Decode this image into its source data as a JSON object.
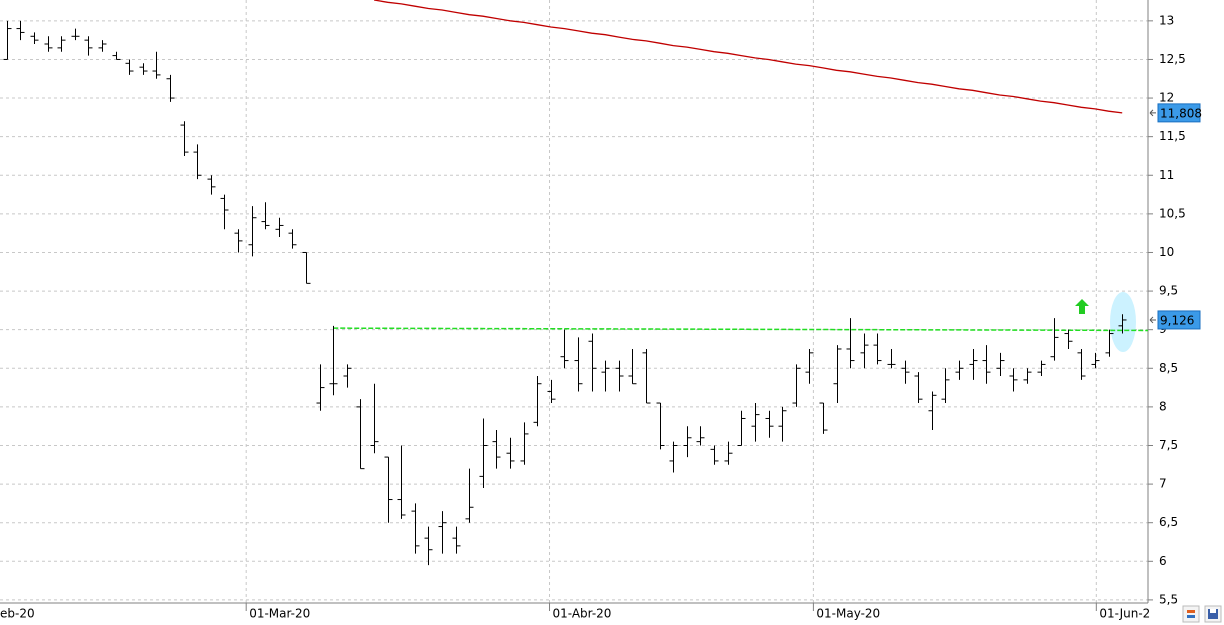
{
  "chart_data": {
    "type": "ohlc",
    "color": "#000000",
    "grid": true,
    "xlim": [
      -0.5,
      83.9
    ],
    "ylim": [
      5.46,
      13.27
    ],
    "yticks": [
      {
        "value": 5.5,
        "label": "5,5"
      },
      6,
      {
        "value": 6.5,
        "label": "6,5"
      },
      7,
      {
        "value": 7.5,
        "label": "7,5"
      },
      8,
      {
        "value": 8.5,
        "label": "8,5"
      },
      9,
      {
        "value": 9.5,
        "label": "9,5"
      },
      10,
      {
        "value": 10.5,
        "label": "10,5"
      },
      11,
      {
        "value": 11.5,
        "label": "11,5"
      },
      12,
      {
        "value": 12.5,
        "label": "12,5"
      },
      13
    ],
    "xticks": [
      {
        "value": -0.72,
        "label": "eb-20"
      },
      {
        "value": 17.6,
        "label": "01-Mar-20"
      },
      {
        "value": 39.9,
        "label": "01-Abr-20"
      },
      {
        "value": 59.3,
        "label": "01-May-20"
      },
      {
        "value": 80.1,
        "label": "01-Jun-2"
      }
    ],
    "x": [
      0,
      1,
      2,
      3,
      4,
      5,
      6,
      7,
      8,
      9,
      10,
      11,
      12,
      13,
      14,
      15,
      16,
      17,
      18,
      19,
      20,
      21,
      22,
      23,
      24,
      25,
      26,
      27,
      28,
      29,
      30,
      31,
      32,
      33,
      34,
      35,
      36,
      37,
      38,
      39,
      40,
      41,
      42,
      43,
      44,
      45,
      46,
      47,
      48,
      49,
      50,
      51,
      52,
      53,
      54,
      55,
      56,
      57,
      58,
      59,
      60,
      61,
      62,
      63,
      64,
      65,
      66,
      67,
      68,
      69,
      70,
      71,
      72,
      73,
      74,
      75,
      76,
      77,
      78,
      79,
      80,
      81,
      82
    ],
    "open": [
      12.5,
      12.9,
      12.8,
      12.7,
      12.65,
      12.8,
      12.75,
      12.65,
      12.55,
      12.45,
      12.4,
      12.35,
      12.25,
      11.65,
      11.3,
      10.95,
      10.7,
      10.25,
      10.1,
      10.4,
      10.3,
      10.25,
      10.0,
      8.05,
      8.3,
      8.4,
      8.0,
      7.5,
      7.35,
      6.8,
      6.65,
      6.3,
      6.45,
      6.3,
      6.55,
      7.1,
      7.55,
      7.4,
      7.3,
      7.8,
      8.2,
      8.65,
      8.6,
      8.85,
      8.45,
      8.5,
      8.4,
      8.7,
      8.05,
      7.3,
      7.5,
      7.55,
      7.45,
      7.3,
      7.5,
      7.75,
      7.85,
      7.75,
      8.05,
      8.45,
      8.05,
      8.3,
      8.75,
      8.7,
      8.8,
      8.55,
      8.5,
      8.4,
      7.95,
      8.1,
      8.45,
      8.55,
      8.6,
      8.5,
      8.4,
      8.35,
      8.45,
      8.65,
      8.95,
      8.7,
      8.55,
      8.7,
      9.05
    ],
    "high": [
      13.0,
      13.0,
      12.85,
      12.8,
      12.8,
      12.9,
      12.8,
      12.75,
      12.6,
      12.5,
      12.45,
      12.6,
      12.3,
      11.7,
      11.4,
      11.0,
      10.75,
      10.3,
      10.6,
      10.65,
      10.45,
      10.3,
      10.0,
      8.55,
      9.05,
      8.55,
      8.1,
      8.3,
      7.35,
      7.5,
      6.75,
      6.45,
      6.65,
      6.45,
      7.2,
      7.85,
      7.7,
      7.6,
      7.8,
      8.4,
      8.35,
      9.0,
      8.9,
      8.95,
      8.6,
      8.6,
      8.75,
      8.75,
      8.05,
      7.55,
      7.75,
      7.75,
      7.5,
      7.55,
      7.95,
      8.05,
      7.95,
      8.0,
      8.55,
      8.75,
      8.05,
      8.8,
      9.15,
      8.95,
      8.95,
      8.75,
      8.6,
      8.45,
      8.2,
      8.5,
      8.6,
      8.75,
      8.8,
      8.7,
      8.5,
      8.5,
      8.6,
      9.15,
      9.0,
      8.75,
      8.7,
      9.0,
      9.2
    ],
    "low": [
      12.5,
      12.75,
      12.7,
      12.6,
      12.6,
      12.75,
      12.55,
      12.6,
      12.5,
      12.3,
      12.3,
      12.25,
      11.95,
      11.25,
      10.95,
      10.75,
      10.3,
      10.0,
      9.95,
      10.3,
      10.2,
      10.05,
      9.6,
      7.95,
      8.15,
      8.25,
      7.2,
      7.4,
      6.5,
      6.55,
      6.1,
      5.95,
      6.1,
      6.1,
      6.5,
      6.95,
      7.2,
      7.2,
      7.25,
      7.75,
      8.05,
      8.5,
      8.2,
      8.2,
      8.2,
      8.2,
      8.3,
      8.05,
      7.45,
      7.15,
      7.35,
      7.5,
      7.25,
      7.25,
      7.5,
      7.55,
      7.6,
      7.55,
      8.0,
      8.3,
      7.65,
      8.05,
      8.5,
      8.5,
      8.55,
      8.5,
      8.3,
      8.05,
      7.7,
      8.05,
      8.35,
      8.35,
      8.3,
      8.4,
      8.2,
      8.3,
      8.4,
      8.6,
      8.75,
      8.35,
      8.5,
      8.65,
      8.95
    ],
    "close": [
      12.9,
      12.85,
      12.75,
      12.65,
      12.75,
      12.8,
      12.65,
      12.7,
      12.5,
      12.35,
      12.35,
      12.3,
      12.0,
      11.3,
      11.0,
      10.85,
      10.55,
      10.15,
      10.45,
      10.35,
      10.35,
      10.1,
      9.6,
      8.25,
      8.3,
      8.5,
      7.2,
      7.55,
      6.8,
      6.6,
      6.2,
      6.15,
      6.5,
      6.2,
      6.7,
      7.5,
      7.35,
      7.3,
      7.65,
      8.3,
      8.1,
      8.6,
      8.3,
      8.5,
      8.5,
      8.4,
      8.3,
      8.05,
      7.5,
      7.5,
      7.6,
      7.6,
      7.3,
      7.4,
      7.85,
      7.9,
      7.75,
      7.95,
      8.5,
      8.7,
      7.7,
      8.75,
      8.6,
      8.8,
      8.6,
      8.55,
      8.45,
      8.1,
      8.15,
      8.35,
      8.5,
      8.6,
      8.45,
      8.6,
      8.35,
      8.45,
      8.55,
      8.9,
      8.85,
      8.4,
      8.6,
      8.95,
      9.126
    ],
    "last_label": "9,126",
    "label_color": "#3b9ae8",
    "moving_average": {
      "color": "#c00000",
      "values": [
        null,
        null,
        null,
        null,
        null,
        null,
        null,
        null,
        null,
        null,
        null,
        null,
        null,
        null,
        null,
        null,
        null,
        null,
        null,
        null,
        null,
        null,
        null,
        null,
        null,
        null,
        null,
        13.27,
        13.24,
        13.22,
        13.19,
        13.16,
        13.14,
        13.11,
        13.08,
        13.06,
        13.03,
        13.0,
        12.98,
        12.95,
        12.92,
        12.9,
        12.87,
        12.84,
        12.82,
        12.79,
        12.76,
        12.74,
        12.71,
        12.68,
        12.66,
        12.63,
        12.6,
        12.58,
        12.55,
        12.52,
        12.5,
        12.47,
        12.44,
        12.42,
        12.39,
        12.36,
        12.34,
        12.31,
        12.28,
        12.26,
        12.23,
        12.2,
        12.18,
        12.15,
        12.12,
        12.1,
        12.07,
        12.04,
        12.02,
        11.99,
        11.96,
        11.94,
        11.91,
        11.88,
        11.86,
        11.83,
        11.808
      ],
      "last_label": "11,808"
    },
    "level_line": {
      "color": "#22dd22",
      "x": [
        24,
        83.9
      ],
      "values": [
        9.02,
        8.99
      ]
    }
  }
}
